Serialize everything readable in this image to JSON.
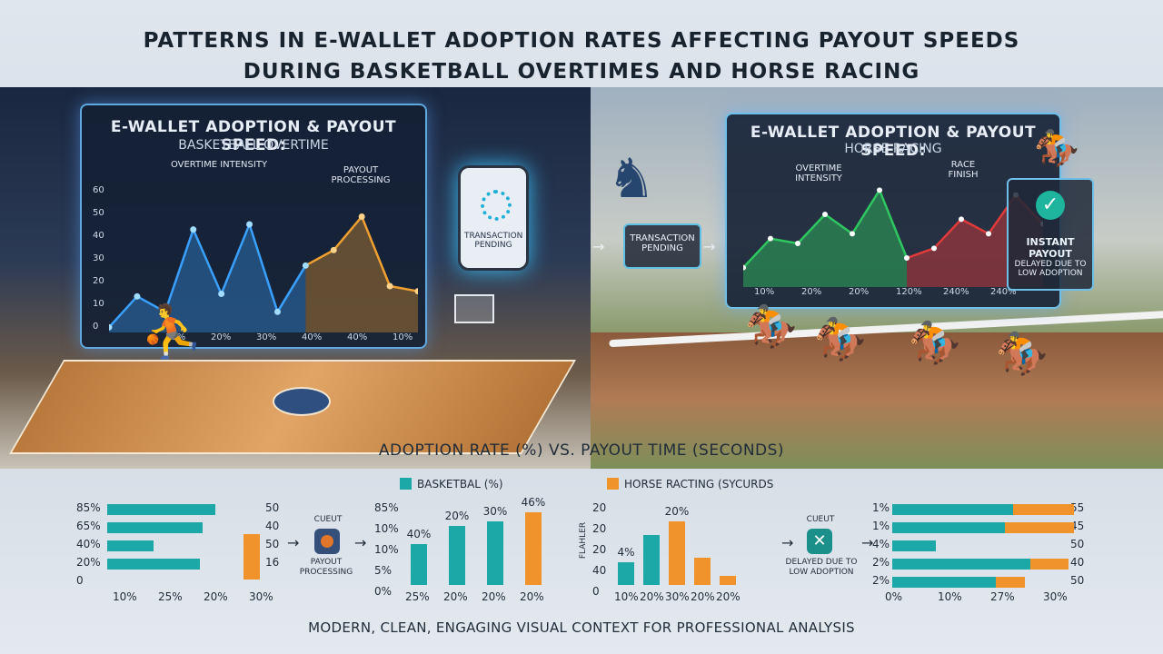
{
  "title": {
    "line1": "PATTERNS IN E-WALLET ADOPTION RATES AFFECTING PAYOUT SPEEDS",
    "line2": "DURING BASKETBALL OVERTIMES AND HORSE RACING"
  },
  "basketball_panel": {
    "heading": "E-WALLET ADOPTION & PAYOUT SPEED:",
    "subheading": "BASKETBALL OVERTIME",
    "label_left": "OVERTIME INTENSITY",
    "label_right": "PAYOUT PROCESSING",
    "y_ticks": [
      "60",
      "50",
      "40",
      "30",
      "20",
      "10",
      "0"
    ],
    "x_ticks": [
      "10%",
      "20%",
      "30%",
      "40%",
      "40%",
      "10%"
    ],
    "line_values": [
      2,
      14,
      8,
      40,
      15,
      42,
      8,
      26,
      32,
      45,
      18,
      16
    ],
    "colors": {
      "blue": "#3aa0ff",
      "orange": "#f0a030"
    }
  },
  "phone": {
    "label": "TRANSACTION PENDING"
  },
  "horse_panel": {
    "heading": "E-WALLET ADOPTION & PAYOUT SPEED:",
    "subheading": "HORSE RACING",
    "label_left": "OVERTIME INTENSITY",
    "label_right": "RACE FINISH",
    "x_ticks": [
      "10%",
      "20%",
      "20%",
      "120%",
      "240%",
      "240%"
    ],
    "line_values": [
      8,
      20,
      18,
      30,
      22,
      40,
      12,
      16,
      28,
      22,
      38,
      26
    ],
    "colors": {
      "green": "#2ec760",
      "red": "#e03a3a"
    }
  },
  "pending_box": {
    "label": "TRANSACTION PENDING"
  },
  "instant_box": {
    "title": "INSTANT PAYOUT",
    "note": "DELAYED DUE TO LOW ADOPTION"
  },
  "lower": {
    "title": "ADOPTION RATE (%) VS. PAYOUT TIME (SECONDS)",
    "legend": [
      {
        "label": "BASKETBAL (%)",
        "color": "#1ba8a6"
      },
      {
        "label": "HORSE RACTING (SYCURDS",
        "color": "#f0932b"
      }
    ]
  },
  "chart_data": [
    {
      "type": "bar",
      "orientation": "horizontal",
      "row_labels": [
        "85%",
        "65%",
        "40%",
        "20%",
        "0"
      ],
      "right_labels": [
        "50",
        "40",
        "50",
        "16"
      ],
      "x_labels": [
        "10%",
        "25%",
        "20%",
        "30%"
      ],
      "values": [
        70,
        62,
        30,
        60
      ],
      "orange_value": 55
    },
    {
      "type": "bar",
      "y_labels": [
        "85%",
        "10%",
        "10%",
        "5%",
        "0%"
      ],
      "categories": [
        "25%",
        "20%",
        "20%",
        "20%"
      ],
      "values": [
        45,
        65,
        70,
        80
      ],
      "data_labels": [
        "40%",
        "20%",
        "30%",
        "46%"
      ]
    },
    {
      "type": "bar",
      "y_labels": [
        "20",
        "20",
        "20",
        "40",
        "0"
      ],
      "ylabel": "FLAHLER",
      "categories": [
        "10%",
        "20%",
        "30%",
        "20%",
        "20%"
      ],
      "values": [
        25,
        55,
        70,
        30,
        10
      ],
      "data_labels": [
        "4%",
        "",
        "20%",
        "",
        ""
      ],
      "series_colors": [
        "#1ba8a6",
        "#1ba8a6",
        "#f0932b",
        "#f0932b",
        "#f0932b"
      ]
    },
    {
      "type": "bar",
      "orientation": "horizontal",
      "row_labels": [
        "1%",
        "1%",
        "4%",
        "2%",
        "2%"
      ],
      "right_labels": [
        "55",
        "45",
        "50",
        "40",
        "50"
      ],
      "x_labels": [
        "0%",
        "10%",
        "27%",
        "30%"
      ],
      "teal": [
        70,
        65,
        25,
        80,
        60
      ],
      "orange": [
        35,
        40,
        0,
        22,
        17
      ]
    }
  ],
  "mini_left": {
    "top": "CUEUT",
    "bottom": "PAYOUT PROCESSING"
  },
  "mini_right": {
    "top": "CUEUT",
    "bottom": "DELAYED DUE TO LOW ADOPTION"
  },
  "footer": "MODERN, CLEAN, ENGAGING VISUAL CONTEXT FOR PROFESSIONAL ANALYSIS"
}
